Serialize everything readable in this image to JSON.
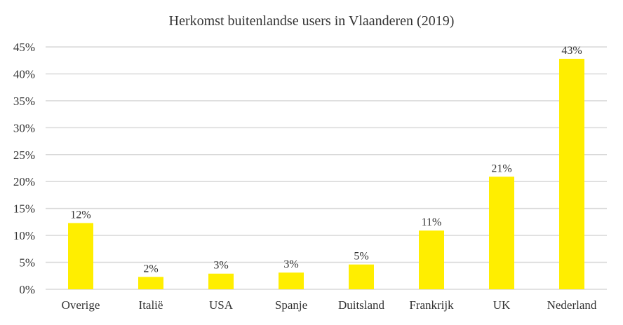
{
  "chart_data": {
    "type": "bar",
    "title": "Herkomst buitenlandse users in Vlaanderen (2019)",
    "xlabel": "",
    "ylabel": "",
    "categories": [
      "Overige",
      "Italië",
      "USA",
      "Spanje",
      "Duitsland",
      "Frankrijk",
      "UK",
      "Nederland"
    ],
    "values": [
      12.3,
      2.3,
      2.9,
      3.1,
      4.6,
      10.9,
      20.9,
      42.8
    ],
    "value_labels": [
      "12%",
      "2%",
      "3%",
      "3%",
      "5%",
      "11%",
      "21%",
      "43%"
    ],
    "ylim": [
      0,
      45
    ],
    "yticks": [
      0,
      5,
      10,
      15,
      20,
      25,
      30,
      35,
      40,
      45
    ],
    "ytick_labels": [
      "0%",
      "5%",
      "10%",
      "15%",
      "20%",
      "25%",
      "30%",
      "35%",
      "40%",
      "45%"
    ],
    "grid": true,
    "legend": "none",
    "bar_color": "#FFEE00",
    "grid_color": "#D9D9D9",
    "text_color": "#333333"
  }
}
